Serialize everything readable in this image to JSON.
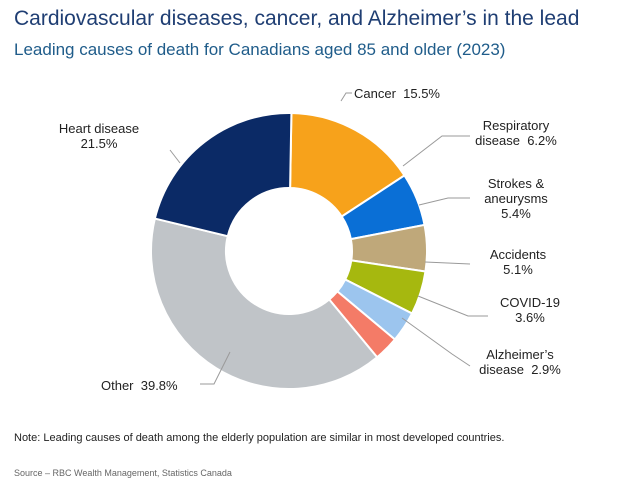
{
  "header": {
    "title": "Cardiovascular diseases, cancer, and Alzheimer’s in the lead",
    "subtitle": "Leading causes of death for Canadians aged 85 and older (2023)"
  },
  "chart_data": {
    "type": "pie",
    "title": "Cardiovascular diseases, cancer, and Alzheimer’s in the lead",
    "subtitle": "Leading causes of death for Canadians aged 85 and older (2023)",
    "donut": true,
    "slices": [
      {
        "label": "Cancer",
        "label_lines": [
          "Cancer  15.5%"
        ],
        "value": 15.5,
        "color": "#f7a21b"
      },
      {
        "label": "Respiratory disease",
        "label_lines": [
          "Respiratory",
          "disease  6.2%"
        ],
        "value": 6.2,
        "color": "#0a6fd6"
      },
      {
        "label": "Strokes & aneurysms",
        "label_lines": [
          "Strokes &",
          "aneurysms",
          "5.4%"
        ],
        "value": 5.4,
        "color": "#bfa87a"
      },
      {
        "label": "Accidents",
        "label_lines": [
          "Accidents",
          "5.1%"
        ],
        "value": 5.1,
        "color": "#a6b80f"
      },
      {
        "label": "COVID-19",
        "label_lines": [
          "COVID-19",
          "3.6%"
        ],
        "value": 3.6,
        "color": "#9cc5ee"
      },
      {
        "label": "Alzheimer’s disease",
        "label_lines": [
          "Alzheimer’s",
          "disease  2.9%"
        ],
        "value": 2.9,
        "color": "#f47b67"
      },
      {
        "label": "Other",
        "label_lines": [
          "Other  39.8%"
        ],
        "value": 39.8,
        "color": "#c0c4c8"
      },
      {
        "label": "Heart disease",
        "label_lines": [
          "Heart disease",
          "21.5%"
        ],
        "value": 21.5,
        "color": "#0b2a66"
      }
    ]
  },
  "footer": {
    "note": "Note: Leading causes of death among the elderly population are similar in most developed countries.",
    "source": "Source – RBC Wealth Management, Statistics Canada"
  }
}
